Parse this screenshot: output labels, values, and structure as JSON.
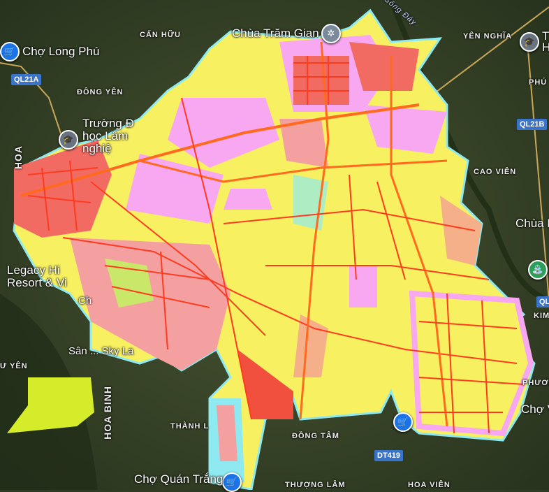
{
  "colors": {
    "residential": "#f7a8f0",
    "urban": "#f26b63",
    "agri": "#f7f060",
    "water": "#8eeaf0",
    "public": "#f5b08a",
    "forest": "#c9e86a",
    "road": "#ff3b1f",
    "satellite": "#34432a"
  },
  "pois": [
    {
      "name": "Chợ Long Phú",
      "icon": "shopping-cart-icon"
    },
    {
      "name": "Chùa Trăm Gian",
      "icon": "temple-icon"
    },
    {
      "name": "Trường Đ\nhọc Lâm\nnghiệ",
      "icon": "school-icon"
    },
    {
      "name": "Legacy Hi\nResort & Vi",
      "icon": "hotel-icon"
    },
    {
      "name": "Chợ Quán Trắng",
      "icon": "shopping-cart-icon"
    },
    {
      "name": "Chùa B",
      "icon": "temple-icon"
    },
    {
      "name": "Chợ V",
      "icon": "shopping-cart-icon"
    },
    {
      "name": "T\nH",
      "icon": "school-icon"
    },
    {
      "name": "Sân ... Sky La",
      "icon": "golf-icon"
    },
    {
      "name": "Ch",
      "icon": ""
    }
  ],
  "areas": [
    "CẤN HỮU",
    "ĐÔNG YÊN",
    "YÊN NGHĨA",
    "PHÚ",
    "CAO VIÊN",
    "KIM",
    "PHƯƠN",
    "ĐỒNG TÂM",
    "THƯỢNG LÂM",
    "HOA VIÊN",
    "THÀNH L",
    "Ư YÊN",
    "HOA BINH",
    "HOA BINH",
    "HOA"
  ],
  "roads": [
    "QL21A",
    "QL21B",
    "DT419",
    "QL"
  ],
  "river": "Sông Đáy"
}
